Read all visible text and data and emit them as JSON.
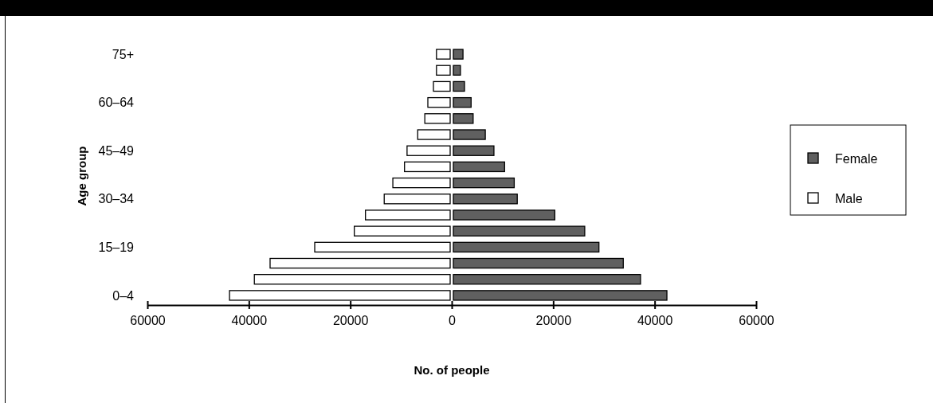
{
  "chart_data": {
    "type": "bar",
    "orientation": "horizontal",
    "xlabel": "No. of people",
    "ylabel": "Age group",
    "categories": [
      "75+",
      null,
      null,
      "60–64",
      null,
      null,
      "45–49",
      null,
      null,
      "30–34",
      null,
      null,
      "15–19",
      null,
      null,
      "0–4"
    ],
    "series": [
      {
        "name": "Female",
        "color": "#606060",
        "values": [
          1900,
          1400,
          2200,
          3500,
          3900,
          6300,
          8000,
          10100,
          12000,
          12600,
          20000,
          25900,
          28700,
          33500,
          36900,
          42100
        ]
      },
      {
        "name": "Male",
        "color": "#ffffff",
        "values": [
          -2700,
          -2700,
          -3300,
          -4400,
          -5000,
          -6400,
          -8500,
          -9000,
          -11300,
          -13000,
          -16700,
          -18900,
          -26700,
          -35500,
          -38600,
          -43500
        ]
      }
    ],
    "xlim": [
      -60000,
      60000
    ],
    "xticks": [
      {
        "value": -60000,
        "label": "60000"
      },
      {
        "value": -40000,
        "label": "40000"
      },
      {
        "value": -20000,
        "label": "20000"
      },
      0,
      20000,
      40000,
      60000
    ],
    "stacked": true,
    "grid": false,
    "legend": "right"
  }
}
